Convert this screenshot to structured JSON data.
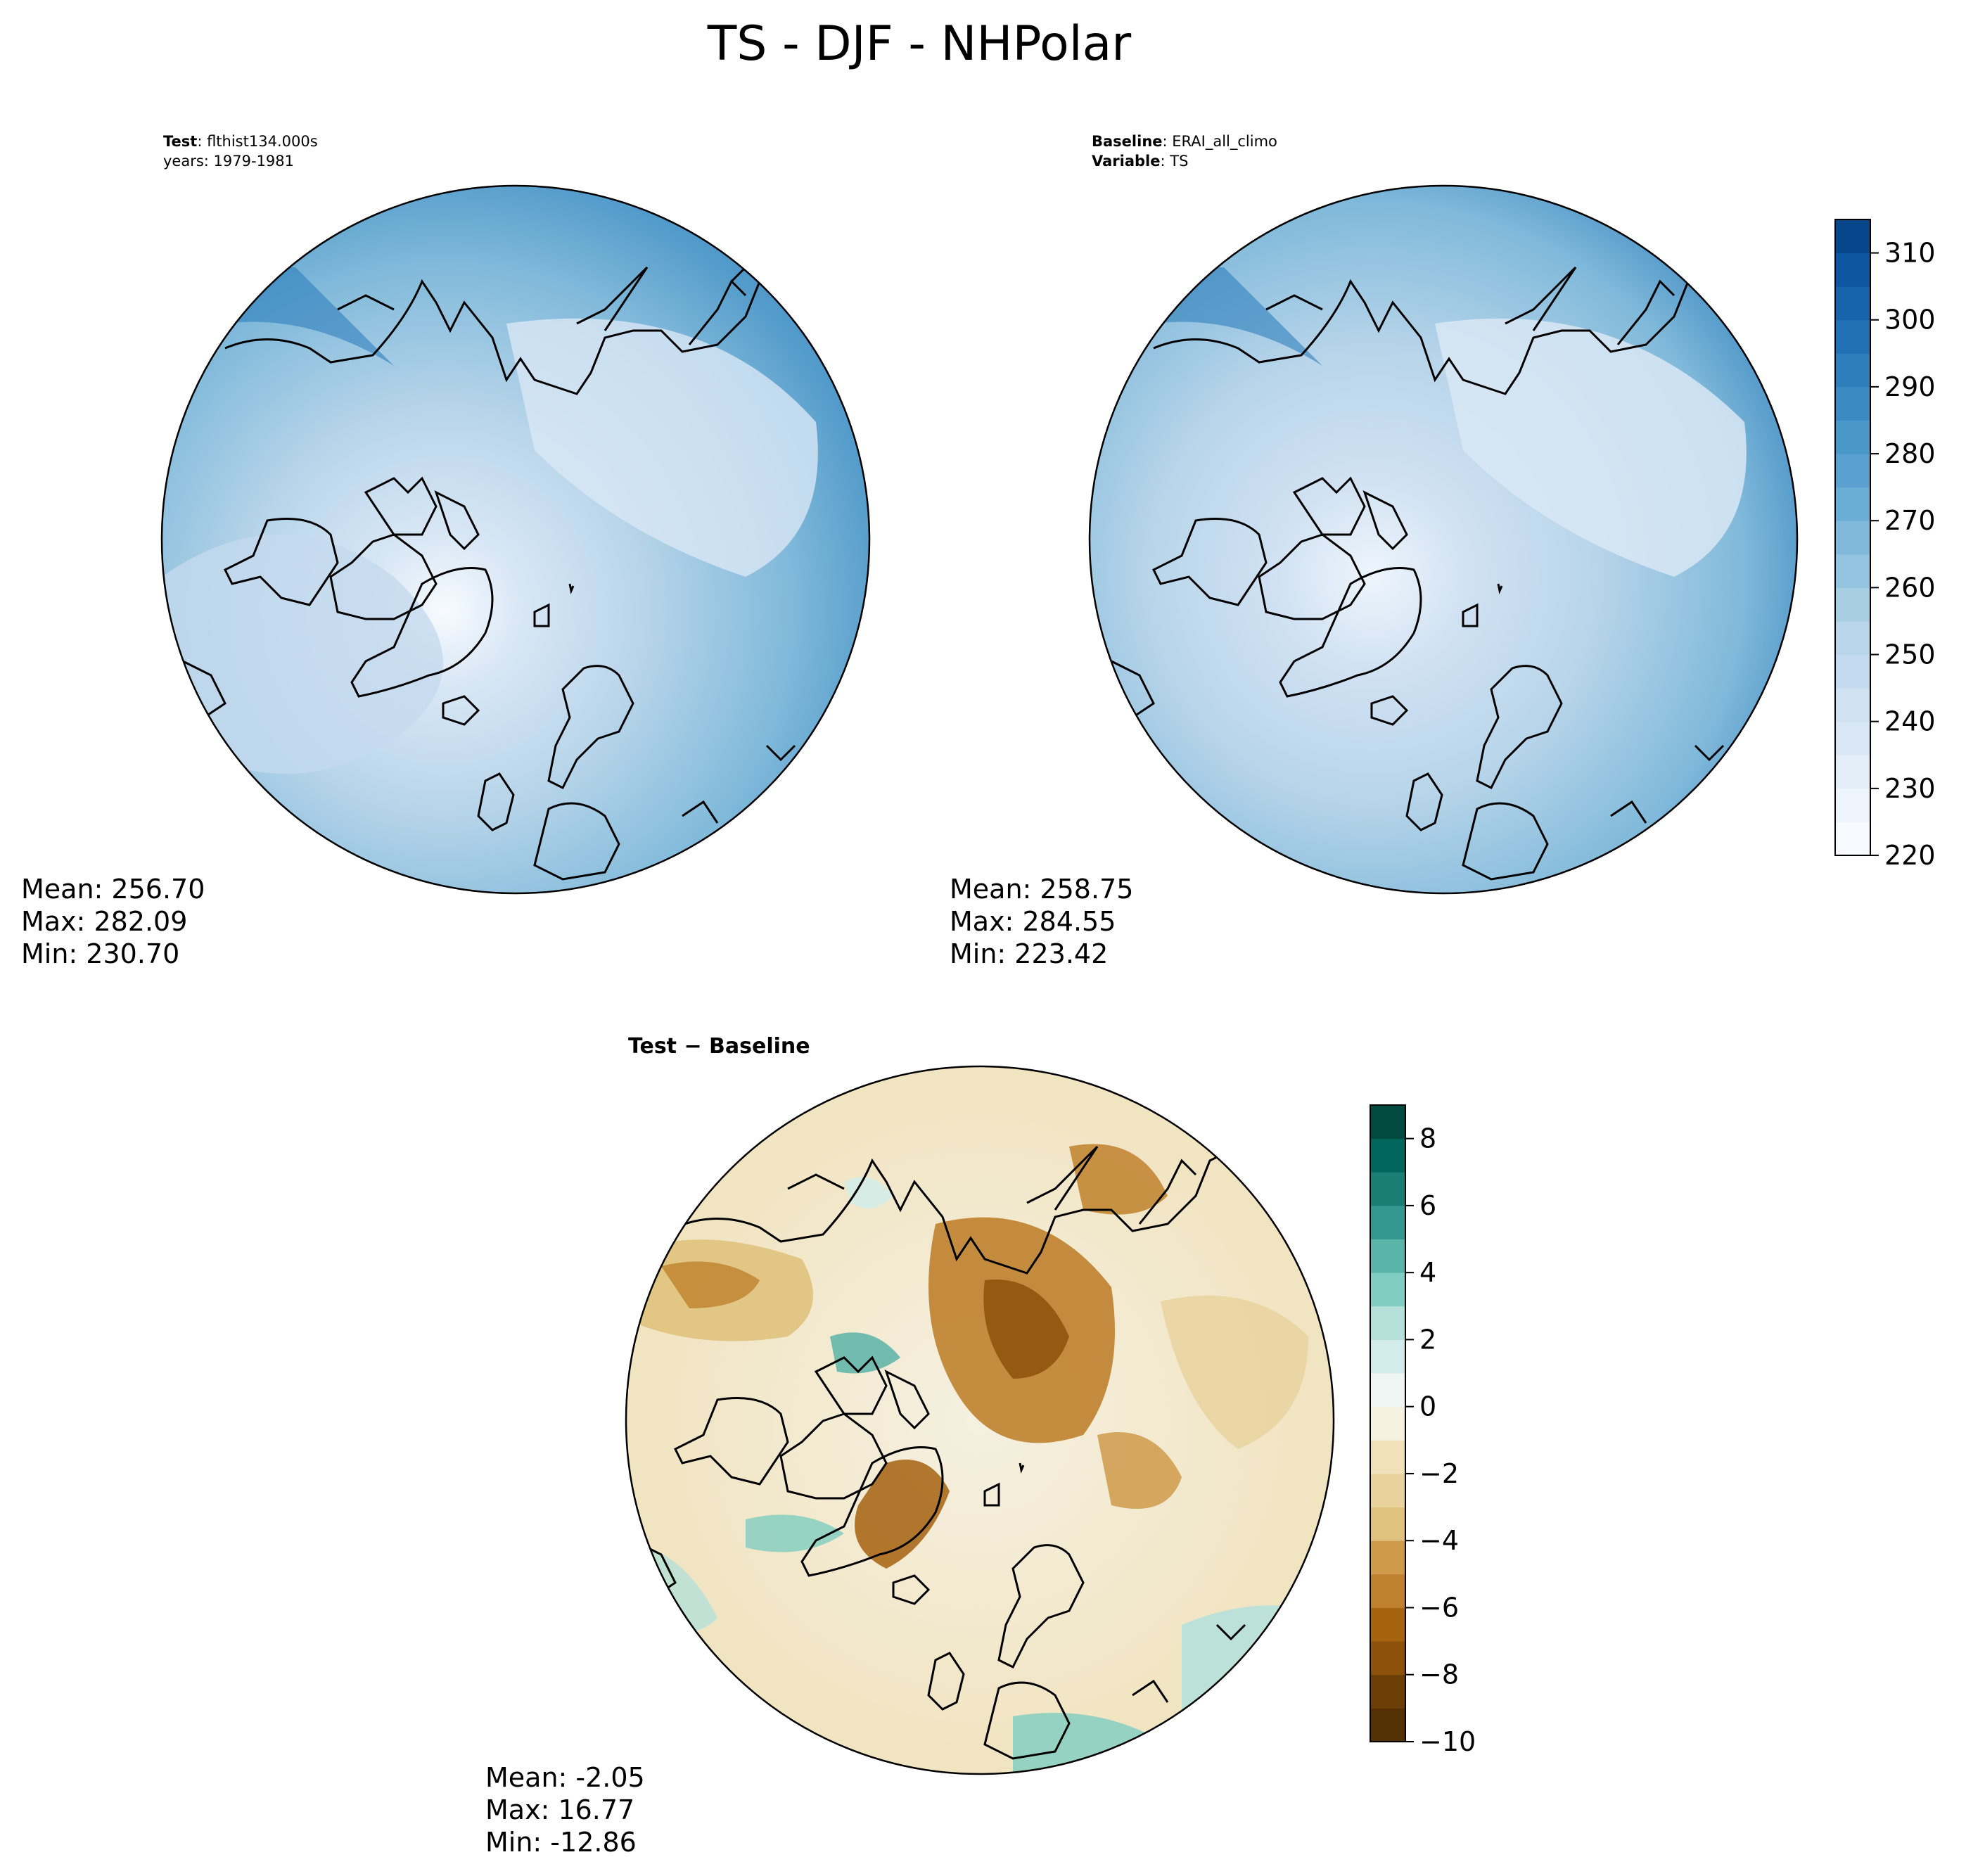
{
  "title": "TS - DJF - NHPolar",
  "panels": {
    "test": {
      "header_line1_key": "Test",
      "header_line1_val": ": flthist134.000s",
      "header_line2": "years: 1979-1981",
      "stats": {
        "mean": "Mean: 256.70",
        "max": "Max: 282.09",
        "min": "Min: 230.70"
      }
    },
    "baseline": {
      "header_line1_key": "Baseline",
      "header_line1_val": ": ERAI_all_climo",
      "header_line2_key": "Variable",
      "header_line2_val": ": TS",
      "stats": {
        "mean": "Mean: 258.75",
        "max": "Max: 284.55",
        "min": "Min: 223.42"
      }
    },
    "diff": {
      "label": "Test − Baseline",
      "stats": {
        "mean": "Mean: -2.05",
        "max": "Max: 16.77",
        "min": "Min: -12.86"
      }
    }
  },
  "chart_data": [
    {
      "type": "heatmap",
      "subtype": "polar-stereographic-contour-map",
      "panel": "test",
      "variable": "TS",
      "mean": 256.7,
      "max": 282.09,
      "min": 230.7,
      "colormap": "Blues"
    },
    {
      "type": "heatmap",
      "subtype": "polar-stereographic-contour-map",
      "panel": "baseline",
      "variable": "TS",
      "mean": 258.75,
      "max": 284.55,
      "min": 223.42,
      "colormap": "Blues",
      "colorbar": {
        "range": [
          220,
          315
        ],
        "ticks": [
          220,
          230,
          240,
          250,
          260,
          270,
          280,
          290,
          300,
          310
        ],
        "tick_labels": [
          "220",
          "230",
          "240",
          "250",
          "260",
          "270",
          "280",
          "290",
          "300",
          "310"
        ],
        "levels": [
          220,
          225,
          230,
          235,
          240,
          245,
          250,
          255,
          260,
          265,
          270,
          275,
          280,
          285,
          290,
          295,
          300,
          305,
          310,
          315
        ],
        "colors": [
          "#f7fbff",
          "#edf4fc",
          "#e3eef8",
          "#d9e7f5",
          "#d0e1f2",
          "#c4daee",
          "#b8d5ea",
          "#a8cee4",
          "#94c4df",
          "#80b9da",
          "#6aaed6",
          "#5aa1cf",
          "#4a98c9",
          "#3b8bc2",
          "#2e7ebc",
          "#2171b5",
          "#1764ab",
          "#0d57a1",
          "#08468b"
        ]
      }
    },
    {
      "type": "heatmap",
      "subtype": "polar-stereographic-contour-map",
      "panel": "diff",
      "variable": "TS",
      "mean": -2.05,
      "max": 16.77,
      "min": -12.86,
      "colormap": "BrBG",
      "colorbar": {
        "range": [
          -10,
          9
        ],
        "ticks": [
          -10,
          -8,
          -6,
          -4,
          -2,
          0,
          2,
          4,
          6,
          8
        ],
        "tick_labels": [
          "−10",
          "−8",
          "−6",
          "−4",
          "−2",
          "0",
          "2",
          "4",
          "6",
          "8"
        ],
        "levels": [
          -10,
          -9,
          -8,
          -7,
          -6,
          -5,
          -4,
          -3,
          -2,
          -1,
          0,
          1,
          2,
          3,
          4,
          5,
          6,
          7,
          8,
          9
        ],
        "colors": [
          "#543005",
          "#6b3d07",
          "#8c510a",
          "#a5620f",
          "#bf812d",
          "#cf9a4a",
          "#dfc27d",
          "#e9d29c",
          "#f0e1ba",
          "#f5f0e0",
          "#eef5f2",
          "#d2ecea",
          "#b5e0da",
          "#80cdc1",
          "#5ab4a8",
          "#35978f",
          "#1b7d74",
          "#01665e",
          "#004a40"
        ]
      }
    }
  ]
}
